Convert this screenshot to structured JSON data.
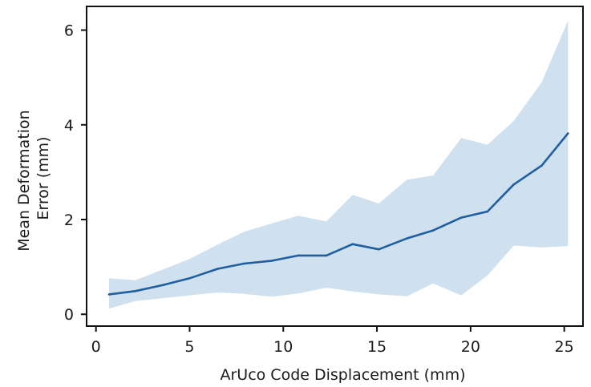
{
  "chart_data": {
    "type": "line",
    "title": "",
    "xlabel": "ArUco Code Displacement (mm)",
    "ylabel_lines": [
      "Mean Deformation",
      "Error (mm)"
    ],
    "xlim": [
      -0.5,
      26
    ],
    "ylim": [
      -0.25,
      6.5
    ],
    "xticks": [
      0,
      5,
      10,
      15,
      20,
      25
    ],
    "yticks": [
      0,
      2,
      4,
      6
    ],
    "grid": false,
    "legend": "none",
    "series": [
      {
        "color": "#1f5fa0",
        "band_color": "#cfe0ef",
        "x": [
          0.7,
          2.1,
          3.6,
          5.0,
          6.5,
          7.9,
          9.4,
          10.8,
          12.3,
          13.7,
          15.1,
          16.6,
          18.0,
          19.5,
          20.9,
          22.3,
          23.8,
          25.2
        ],
        "y": [
          0.42,
          0.49,
          0.62,
          0.76,
          0.96,
          1.07,
          1.13,
          1.24,
          1.24,
          1.48,
          1.37,
          1.6,
          1.77,
          2.04,
          2.17,
          2.74,
          3.14,
          3.82
        ],
        "lower": [
          0.12,
          0.28,
          0.34,
          0.4,
          0.46,
          0.43,
          0.37,
          0.44,
          0.56,
          0.48,
          0.42,
          0.38,
          0.65,
          0.4,
          0.82,
          1.45,
          1.41,
          1.44
        ],
        "upper": [
          0.76,
          0.72,
          0.95,
          1.17,
          1.47,
          1.74,
          1.92,
          2.08,
          1.96,
          2.52,
          2.34,
          2.84,
          2.93,
          3.72,
          3.58,
          4.08,
          4.9,
          6.2
        ]
      }
    ]
  }
}
